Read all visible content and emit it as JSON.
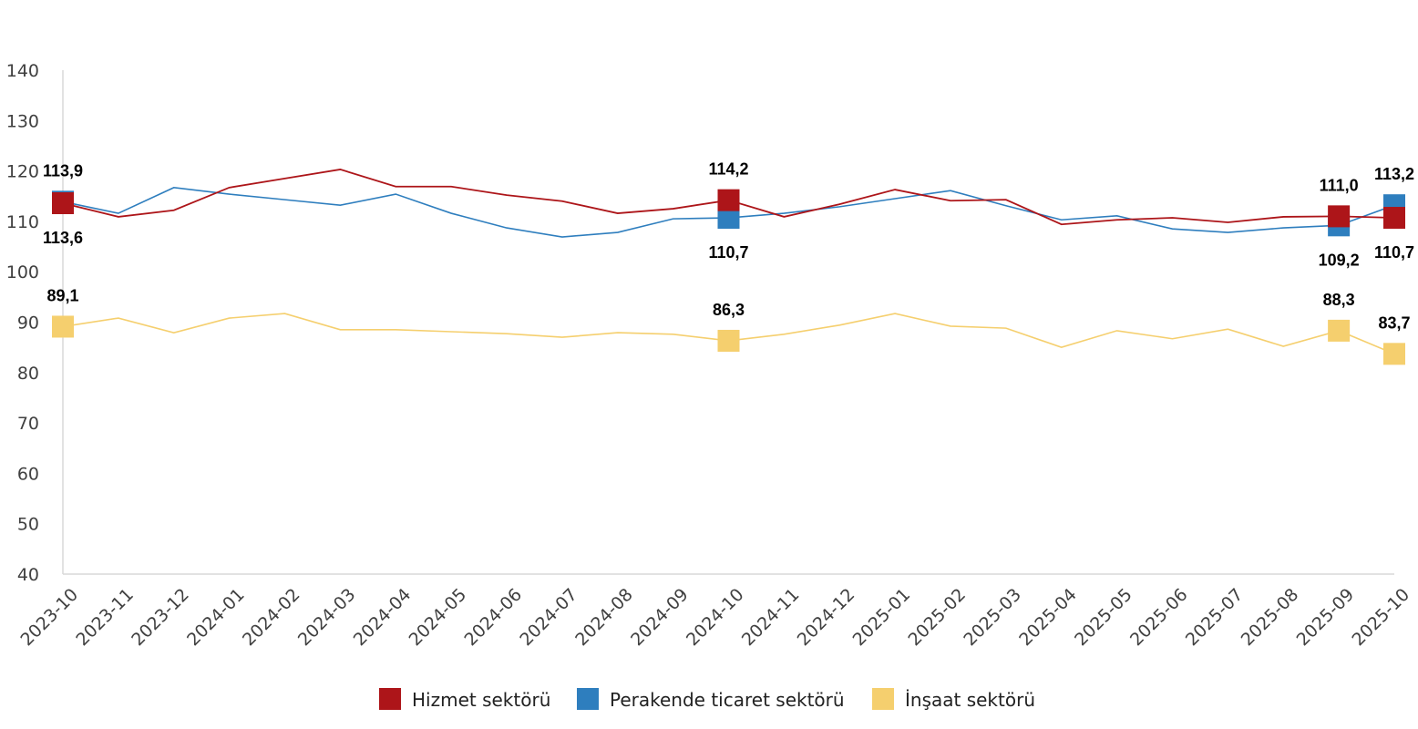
{
  "chart_data": {
    "type": "line",
    "title": "",
    "xlabel": "",
    "ylabel": "",
    "ylim": [
      40,
      140
    ],
    "yticks": [
      40,
      50,
      60,
      70,
      80,
      90,
      100,
      110,
      120,
      130,
      140
    ],
    "grid": false,
    "legend_position": "bottom",
    "categories": [
      "2023-10",
      "2023-11",
      "2023-12",
      "2024-01",
      "2024-02",
      "2024-03",
      "2024-04",
      "2024-05",
      "2024-06",
      "2024-07",
      "2024-08",
      "2024-09",
      "2024-10",
      "2024-11",
      "2024-12",
      "2025-01",
      "2025-02",
      "2025-03",
      "2025-04",
      "2025-05",
      "2025-06",
      "2025-07",
      "2025-08",
      "2025-09",
      "2025-10"
    ],
    "series": [
      {
        "name": "İnşaat sektörü",
        "color": "#F5CF6E",
        "stroke_width": 1.6,
        "values": [
          89.1,
          90.8,
          87.9,
          90.8,
          91.7,
          88.5,
          88.5,
          88.1,
          87.7,
          87.0,
          87.9,
          87.6,
          86.3,
          87.6,
          89.4,
          91.7,
          89.2,
          88.8,
          85.0,
          88.3,
          86.7,
          88.6,
          85.2,
          88.3,
          83.7
        ]
      },
      {
        "name": "Perakende ticaret sektörü",
        "color": "#2E7EBE",
        "stroke_width": 1.6,
        "values": [
          113.9,
          111.6,
          116.7,
          115.4,
          114.3,
          113.2,
          115.4,
          111.6,
          108.7,
          106.9,
          107.8,
          110.5,
          110.7,
          111.6,
          112.9,
          114.5,
          116.1,
          113.1,
          110.3,
          111.1,
          108.5,
          107.8,
          108.7,
          109.2,
          113.2
        ]
      },
      {
        "name": "Hizmet sektörü",
        "color": "#AD1519",
        "stroke_width": 1.8,
        "values": [
          113.6,
          110.9,
          112.2,
          116.7,
          118.5,
          120.3,
          116.9,
          116.9,
          115.2,
          114.0,
          111.6,
          112.5,
          114.2,
          110.9,
          113.4,
          116.3,
          114.1,
          114.3,
          109.4,
          110.3,
          110.7,
          109.8,
          110.9,
          111.0,
          110.7
        ]
      }
    ],
    "highlighted_categories": [
      "2023-10",
      "2024-10",
      "2025-09",
      "2025-10"
    ],
    "annotations": [
      {
        "category": "2023-10",
        "series": "Perakende ticaret sektörü",
        "text": "113,9",
        "position": "above"
      },
      {
        "category": "2023-10",
        "series": "Hizmet sektörü",
        "text": "113,6",
        "position": "below"
      },
      {
        "category": "2023-10",
        "series": "İnşaat sektörü",
        "text": "89,1",
        "position": "above"
      },
      {
        "category": "2024-10",
        "series": "Hizmet sektörü",
        "text": "114,2",
        "position": "above"
      },
      {
        "category": "2024-10",
        "series": "Perakende ticaret sektörü",
        "text": "110,7",
        "position": "below"
      },
      {
        "category": "2024-10",
        "series": "İnşaat sektörü",
        "text": "86,3",
        "position": "above"
      },
      {
        "category": "2025-09",
        "series": "Hizmet sektörü",
        "text": "111,0",
        "position": "above"
      },
      {
        "category": "2025-09",
        "series": "Perakende ticaret sektörü",
        "text": "109,2",
        "position": "below"
      },
      {
        "category": "2025-09",
        "series": "İnşaat sektörü",
        "text": "88,3",
        "position": "above"
      },
      {
        "category": "2025-10",
        "series": "Perakende ticaret sektörü",
        "text": "113,2",
        "position": "above"
      },
      {
        "category": "2025-10",
        "series": "Hizmet sektörü",
        "text": "110,7",
        "position": "below"
      },
      {
        "category": "2025-10",
        "series": "İnşaat sektörü",
        "text": "83,7",
        "position": "above"
      }
    ],
    "legend": [
      {
        "label": "Hizmet sektörü",
        "color": "#AD1519"
      },
      {
        "label": "Perakende ticaret sektörü",
        "color": "#2E7EBE"
      },
      {
        "label": "İnşaat sektörü",
        "color": "#F5CF6E"
      }
    ]
  }
}
